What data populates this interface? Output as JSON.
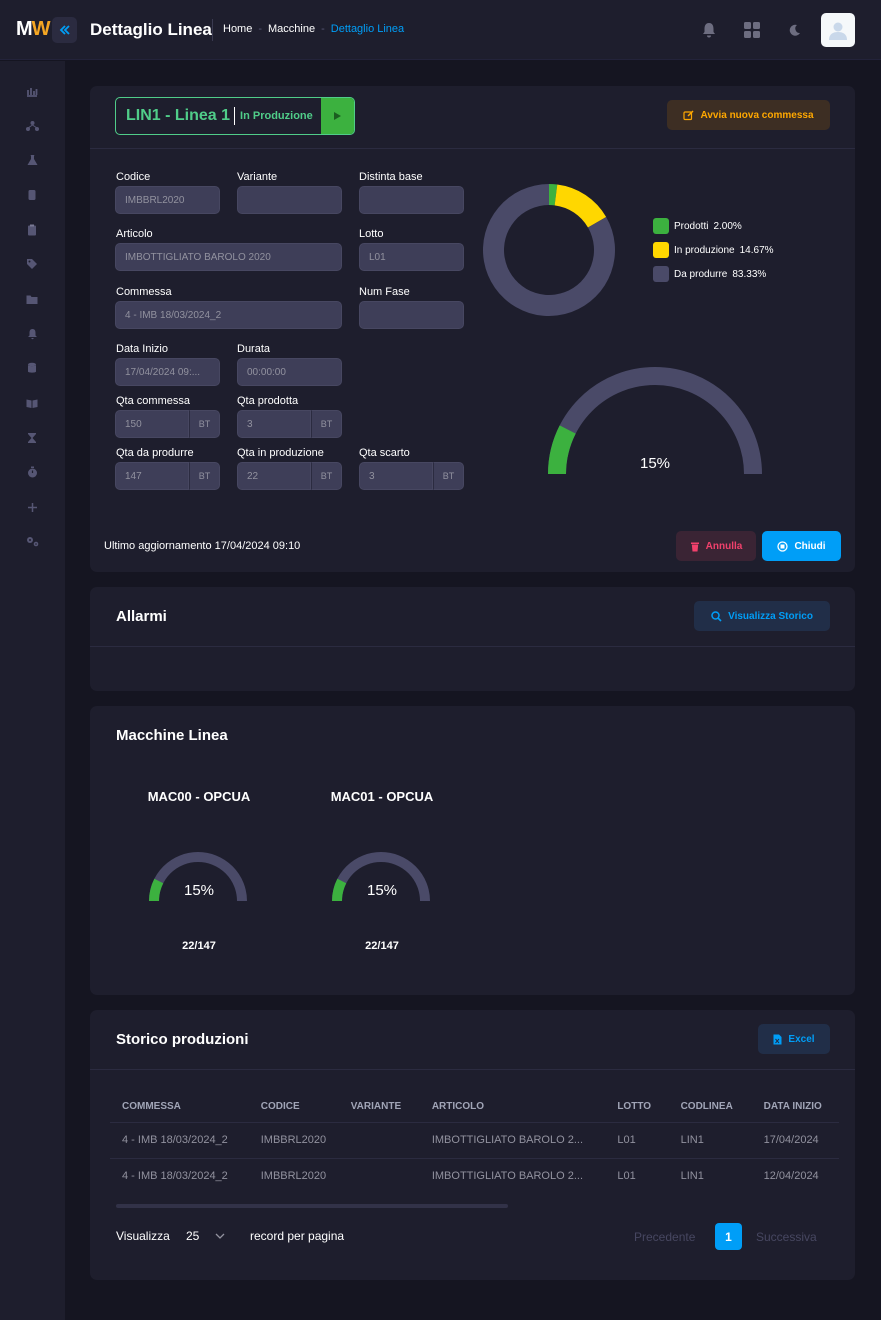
{
  "header": {
    "logo_m": "M",
    "logo_w": "W",
    "title": "Dettaglio Linea",
    "breadcrumb": [
      "Home",
      "Macchine",
      "Dettaglio Linea"
    ],
    "icons": [
      "bell-icon",
      "apps-grid-icon",
      "moon-icon",
      "user-avatar"
    ]
  },
  "sidebar": {
    "icons": [
      "chart-icon",
      "network-icon",
      "flask-icon",
      "bottle-icon",
      "clipboard-icon",
      "tag-icon",
      "folder-icon",
      "bell-icon",
      "database-icon",
      "book-icon",
      "hourglass-icon",
      "stopwatch-icon",
      "plus-icon",
      "cogs-icon"
    ]
  },
  "line": {
    "name": "LIN1 - Linea 1",
    "status": "In Produzione",
    "new_order_label": "Avvia nuova commessa",
    "fields": {
      "codice": {
        "label": "Codice",
        "value": "IMBBRL2020"
      },
      "variante": {
        "label": "Variante",
        "value": ""
      },
      "distinta": {
        "label": "Distinta base",
        "value": ""
      },
      "articolo": {
        "label": "Articolo",
        "value": "IMBOTTIGLIATO BAROLO 2020"
      },
      "lotto": {
        "label": "Lotto",
        "value": "L01"
      },
      "commessa": {
        "label": "Commessa",
        "value": "4 - IMB 18/03/2024_2"
      },
      "num_fase": {
        "label": "Num Fase",
        "value": ""
      },
      "data_inizio": {
        "label": "Data Inizio",
        "value": "17/04/2024 09:..."
      },
      "durata": {
        "label": "Durata",
        "value": "00:00:00"
      },
      "qta_commessa": {
        "label": "Qta commessa",
        "value": "150",
        "unit": "BT"
      },
      "qta_prodotta": {
        "label": "Qta prodotta",
        "value": "3",
        "unit": "BT"
      },
      "qta_da_produrre": {
        "label": "Qta da produrre",
        "value": "147",
        "unit": "BT"
      },
      "qta_in_produzione": {
        "label": "Qta in produzione",
        "value": "22",
        "unit": "BT"
      },
      "qta_scarto": {
        "label": "Qta scarto",
        "value": "3",
        "unit": "BT"
      }
    },
    "donut": {
      "colors": {
        "prodotti": "#3cb13f",
        "in_produzione": "#ffd700",
        "da_produrre": "#4a4a68"
      },
      "legend": [
        {
          "label": "Prodotti",
          "value": "2.00%",
          "pct": 2.0
        },
        {
          "label": "In produzione",
          "value": "14.67%",
          "pct": 14.67
        },
        {
          "label": "Da produrre",
          "value": "83.33%",
          "pct": 83.33
        }
      ]
    },
    "gauge": {
      "label": "15%",
      "fraction": 0.15
    },
    "last_update": "Ultimo aggiornamento 17/04/2024 09:10",
    "cancel_label": "Annulla",
    "close_label": "Chiudi"
  },
  "alarms": {
    "title": "Allarmi",
    "history_label": "Visualizza Storico"
  },
  "machines": {
    "title": "Macchine Linea",
    "items": [
      {
        "name": "MAC00 - OPCUA",
        "gauge_label": "15%",
        "fraction": 0.15,
        "count": "22/147"
      },
      {
        "name": "MAC01 - OPCUA",
        "gauge_label": "15%",
        "fraction": 0.15,
        "count": "22/147"
      }
    ]
  },
  "history": {
    "title": "Storico produzioni",
    "excel_label": "Excel",
    "columns": [
      "COMMESSA",
      "CODICE",
      "VARIANTE",
      "ARTICOLO",
      "LOTTO",
      "CODLINEA",
      "DATA INIZIO"
    ],
    "rows": [
      [
        "4 - IMB 18/03/2024_2",
        "IMBBRL2020",
        "",
        "IMBOTTIGLIATO BAROLO 2...",
        "L01",
        "LIN1",
        "17/04/2024"
      ],
      [
        "4 - IMB 18/03/2024_2",
        "IMBBRL2020",
        "",
        "IMBOTTIGLIATO BAROLO 2...",
        "L01",
        "LIN1",
        "12/04/2024"
      ]
    ],
    "pagination": {
      "show_label": "Visualizza",
      "page_size": "25",
      "per_page_label": "record per pagina",
      "prev_label": "Precedente",
      "current_page": "1",
      "next_label": "Successiva"
    }
  }
}
